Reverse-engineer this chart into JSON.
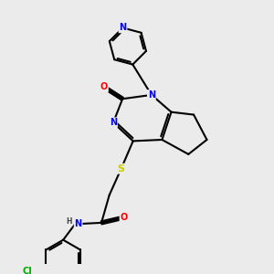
{
  "bg_color": "#ebebeb",
  "atom_colors": {
    "N": "#0000ff",
    "O": "#ff0000",
    "S": "#cccc00",
    "Cl": "#00aa00",
    "C": "#000000",
    "H": "#444444"
  },
  "figsize": [
    3.0,
    3.0
  ],
  "dpi": 100
}
